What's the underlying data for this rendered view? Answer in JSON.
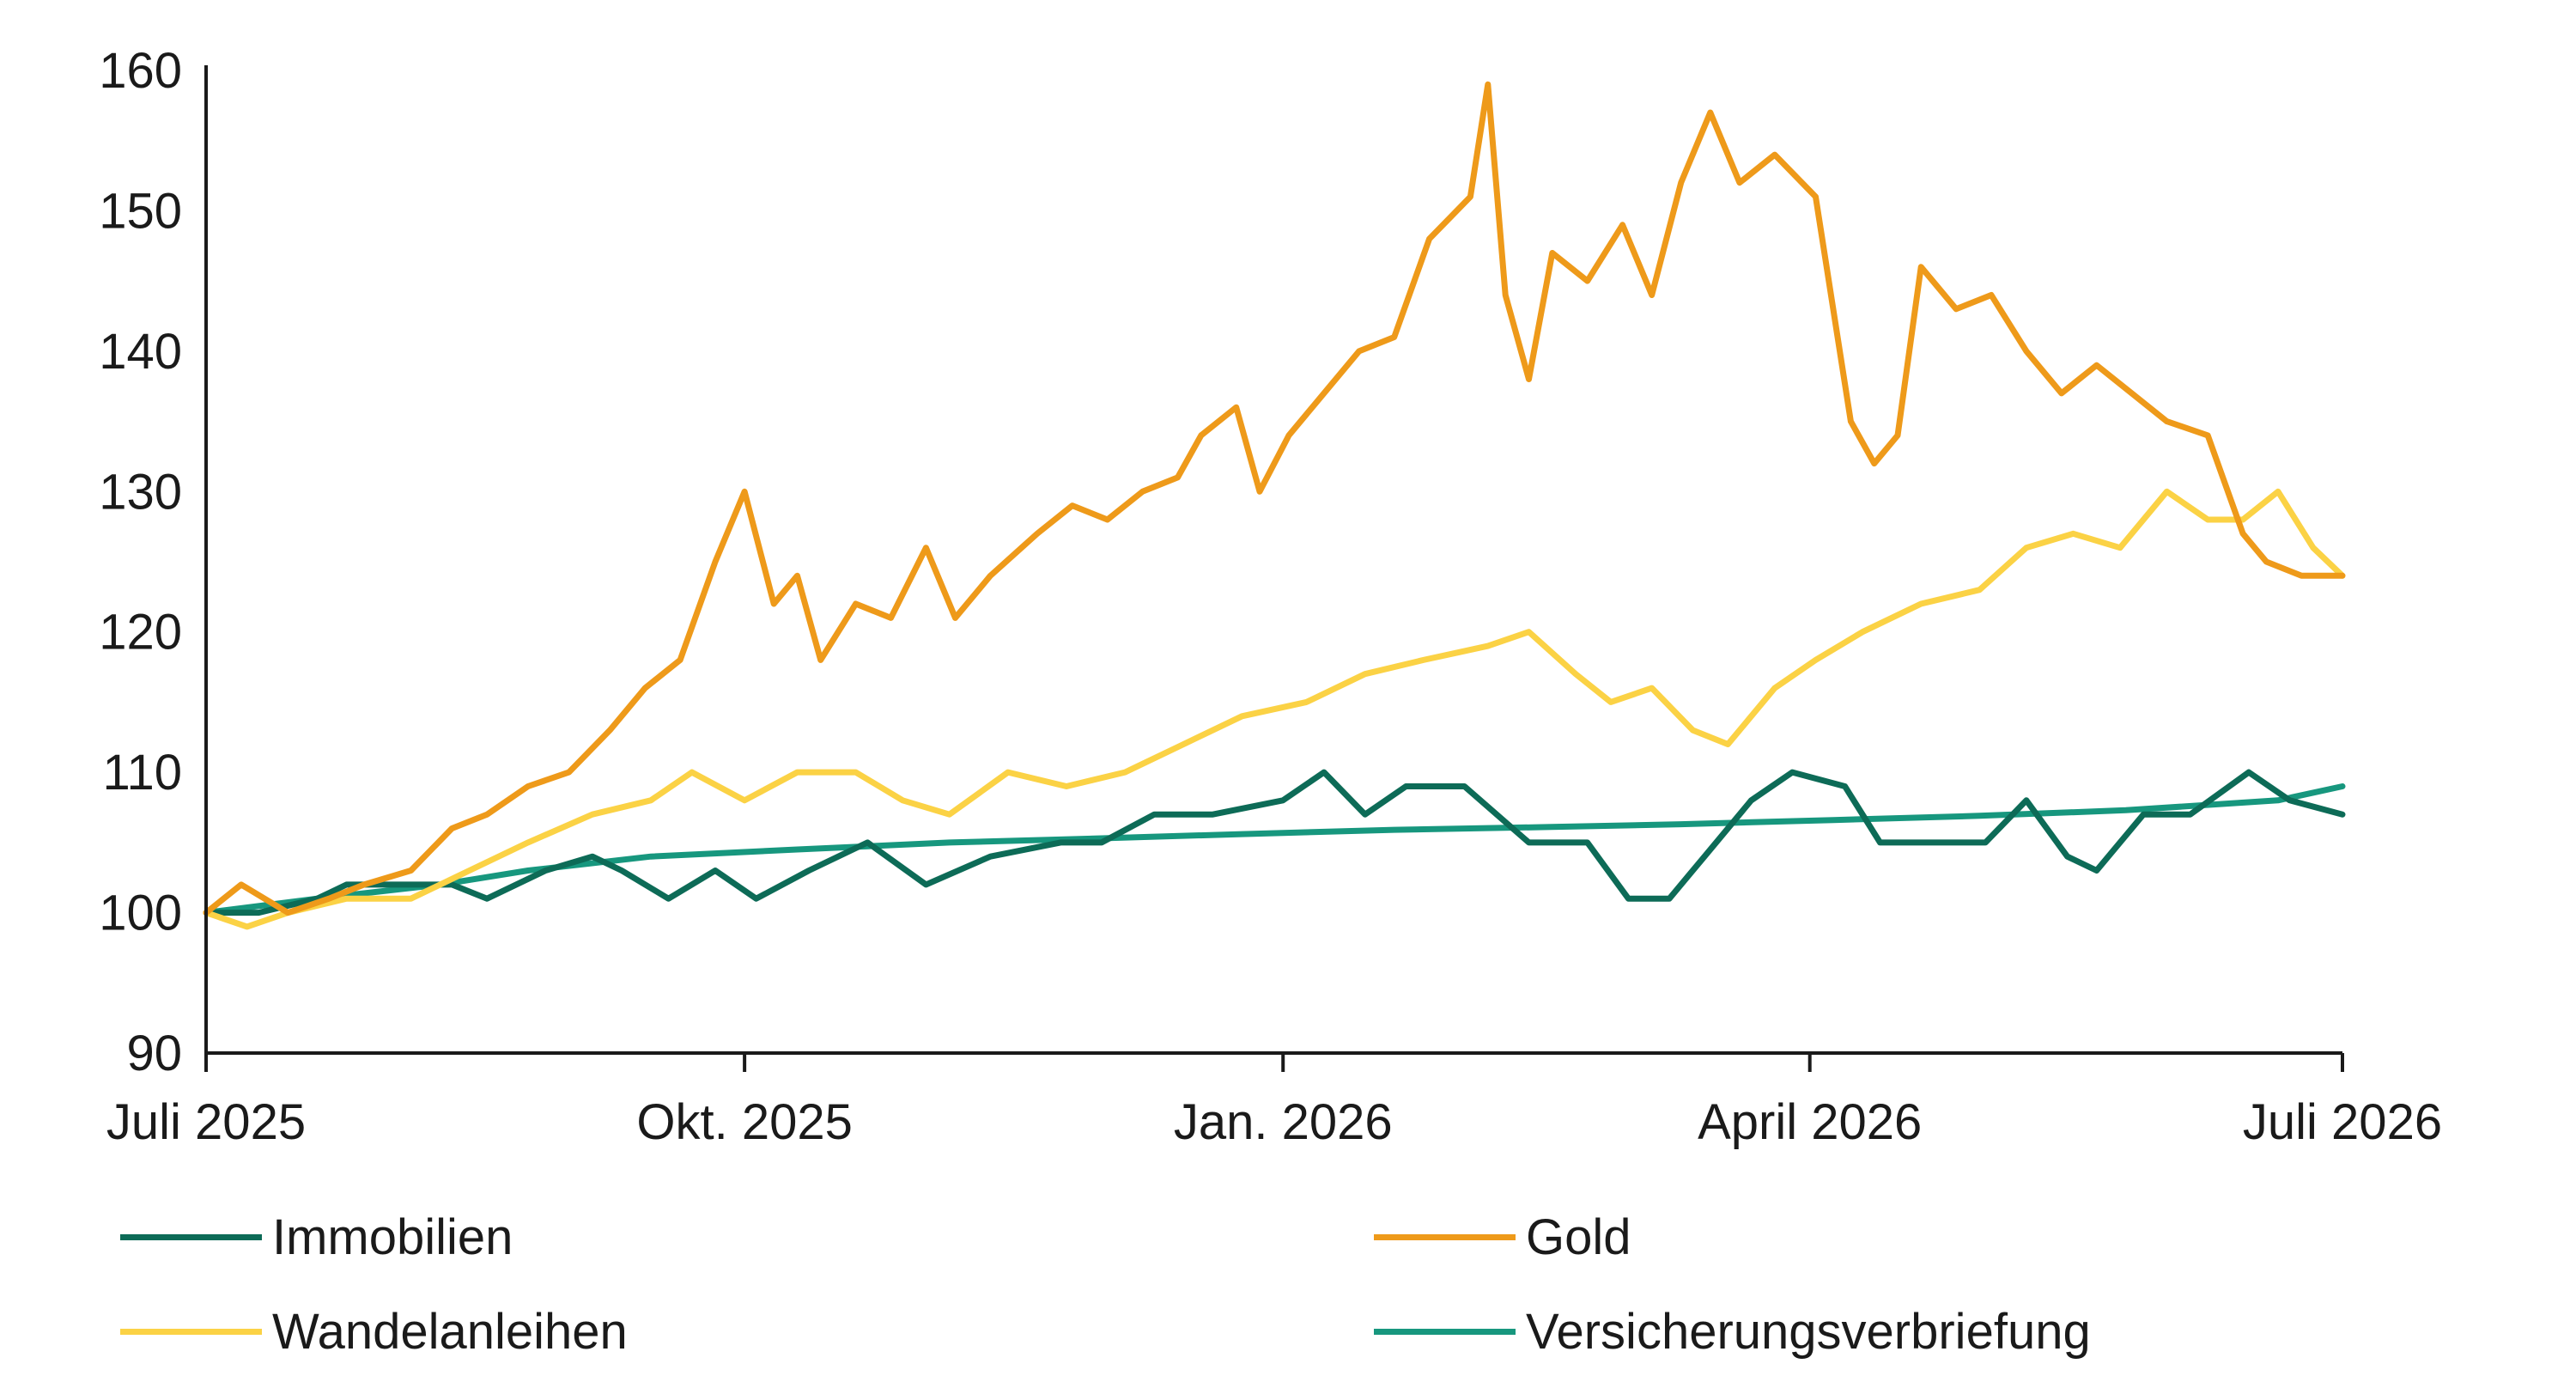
{
  "chart_data": {
    "type": "line",
    "title": "",
    "xlabel": "",
    "ylabel": "",
    "ylim": [
      90,
      160
    ],
    "yticks": [
      "90",
      "100",
      "110",
      "120",
      "130",
      "140",
      "150",
      "160"
    ],
    "xlim": [
      "2025-07-01",
      "2026-07-01"
    ],
    "xticks": [
      {
        "date": "2025-07-01",
        "label": "Juli 2025"
      },
      {
        "date": "2025-10-01",
        "label": "Okt. 2025"
      },
      {
        "date": "2026-01-01",
        "label": "Jan. 2026"
      },
      {
        "date": "2026-04-01",
        "label": "April 2026"
      },
      {
        "date": "2026-07-01",
        "label": "Juli 2026"
      }
    ],
    "grid": false,
    "legend_position": "bottom",
    "series": [
      {
        "name": "Immobilien",
        "color": "#0d6b57",
        "points": [
          [
            "2025-07-01",
            100
          ],
          [
            "2025-07-10",
            100
          ],
          [
            "2025-07-20",
            101
          ],
          [
            "2025-07-25",
            102
          ],
          [
            "2025-08-05",
            102
          ],
          [
            "2025-08-12",
            102
          ],
          [
            "2025-08-18",
            101
          ],
          [
            "2025-08-28",
            103
          ],
          [
            "2025-09-05",
            104
          ],
          [
            "2025-09-10",
            103
          ],
          [
            "2025-09-18",
            101
          ],
          [
            "2025-09-26",
            103
          ],
          [
            "2025-10-03",
            101
          ],
          [
            "2025-10-12",
            103
          ],
          [
            "2025-10-22",
            105
          ],
          [
            "2025-11-01",
            102
          ],
          [
            "2025-11-12",
            104
          ],
          [
            "2025-11-24",
            105
          ],
          [
            "2025-12-01",
            105
          ],
          [
            "2025-12-10",
            107
          ],
          [
            "2025-12-20",
            107
          ],
          [
            "2026-01-01",
            108
          ],
          [
            "2026-01-08",
            110
          ],
          [
            "2026-01-15",
            107
          ],
          [
            "2026-01-22",
            109
          ],
          [
            "2026-02-01",
            109
          ],
          [
            "2026-02-12",
            105
          ],
          [
            "2026-02-22",
            105
          ],
          [
            "2026-03-01",
            101
          ],
          [
            "2026-03-08",
            101
          ],
          [
            "2026-03-14",
            104
          ],
          [
            "2026-03-22",
            108
          ],
          [
            "2026-03-29",
            110
          ],
          [
            "2026-04-07",
            109
          ],
          [
            "2026-04-13",
            105
          ],
          [
            "2026-04-22",
            105
          ],
          [
            "2026-05-01",
            105
          ],
          [
            "2026-05-08",
            108
          ],
          [
            "2026-05-15",
            104
          ],
          [
            "2026-05-20",
            103
          ],
          [
            "2026-05-28",
            107
          ],
          [
            "2026-06-05",
            107
          ],
          [
            "2026-06-15",
            110
          ],
          [
            "2026-06-22",
            108
          ],
          [
            "2026-07-01",
            107
          ]
        ]
      },
      {
        "name": "Gold",
        "color": "#ee9a1a",
        "points": [
          [
            "2025-07-01",
            100
          ],
          [
            "2025-07-07",
            102
          ],
          [
            "2025-07-15",
            100
          ],
          [
            "2025-07-22",
            101
          ],
          [
            "2025-07-28",
            102
          ],
          [
            "2025-08-05",
            103
          ],
          [
            "2025-08-12",
            106
          ],
          [
            "2025-08-18",
            107
          ],
          [
            "2025-08-25",
            109
          ],
          [
            "2025-09-01",
            110
          ],
          [
            "2025-09-08",
            113
          ],
          [
            "2025-09-14",
            116
          ],
          [
            "2025-09-20",
            118
          ],
          [
            "2025-09-26",
            125
          ],
          [
            "2025-10-01",
            130
          ],
          [
            "2025-10-06",
            122
          ],
          [
            "2025-10-10",
            124
          ],
          [
            "2025-10-14",
            118
          ],
          [
            "2025-10-20",
            122
          ],
          [
            "2025-10-26",
            121
          ],
          [
            "2025-11-01",
            126
          ],
          [
            "2025-11-06",
            121
          ],
          [
            "2025-11-12",
            124
          ],
          [
            "2025-11-20",
            127
          ],
          [
            "2025-11-26",
            129
          ],
          [
            "2025-12-02",
            128
          ],
          [
            "2025-12-08",
            130
          ],
          [
            "2025-12-14",
            131
          ],
          [
            "2025-12-18",
            134
          ],
          [
            "2025-12-24",
            136
          ],
          [
            "2025-12-28",
            130
          ],
          [
            "2026-01-02",
            134
          ],
          [
            "2026-01-08",
            137
          ],
          [
            "2026-01-14",
            140
          ],
          [
            "2026-01-20",
            141
          ],
          [
            "2026-01-26",
            148
          ],
          [
            "2026-02-02",
            151
          ],
          [
            "2026-02-05",
            159
          ],
          [
            "2026-02-08",
            144
          ],
          [
            "2026-02-12",
            138
          ],
          [
            "2026-02-16",
            147
          ],
          [
            "2026-02-22",
            145
          ],
          [
            "2026-02-28",
            149
          ],
          [
            "2026-03-05",
            144
          ],
          [
            "2026-03-10",
            152
          ],
          [
            "2026-03-15",
            157
          ],
          [
            "2026-03-20",
            152
          ],
          [
            "2026-03-26",
            154
          ],
          [
            "2026-04-02",
            151
          ],
          [
            "2026-04-08",
            135
          ],
          [
            "2026-04-12",
            132
          ],
          [
            "2026-04-16",
            134
          ],
          [
            "2026-04-20",
            146
          ],
          [
            "2026-04-26",
            143
          ],
          [
            "2026-05-02",
            144
          ],
          [
            "2026-05-08",
            140
          ],
          [
            "2026-05-14",
            137
          ],
          [
            "2026-05-20",
            139
          ],
          [
            "2026-05-26",
            137
          ],
          [
            "2026-06-01",
            135
          ],
          [
            "2026-06-08",
            134
          ],
          [
            "2026-06-14",
            127
          ],
          [
            "2026-06-18",
            125
          ],
          [
            "2026-06-24",
            124
          ],
          [
            "2026-07-01",
            124
          ]
        ]
      },
      {
        "name": "Wandelanleihen",
        "color": "#fbd245",
        "points": [
          [
            "2025-07-01",
            100
          ],
          [
            "2025-07-08",
            99
          ],
          [
            "2025-07-15",
            100
          ],
          [
            "2025-07-25",
            101
          ],
          [
            "2025-08-05",
            101
          ],
          [
            "2025-08-15",
            103
          ],
          [
            "2025-08-25",
            105
          ],
          [
            "2025-09-05",
            107
          ],
          [
            "2025-09-15",
            108
          ],
          [
            "2025-09-22",
            110
          ],
          [
            "2025-10-01",
            108
          ],
          [
            "2025-10-10",
            110
          ],
          [
            "2025-10-20",
            110
          ],
          [
            "2025-10-28",
            108
          ],
          [
            "2025-11-05",
            107
          ],
          [
            "2025-11-15",
            110
          ],
          [
            "2025-11-25",
            109
          ],
          [
            "2025-12-05",
            110
          ],
          [
            "2025-12-15",
            112
          ],
          [
            "2025-12-25",
            114
          ],
          [
            "2026-01-05",
            115
          ],
          [
            "2026-01-15",
            117
          ],
          [
            "2026-01-25",
            118
          ],
          [
            "2026-02-05",
            119
          ],
          [
            "2026-02-12",
            120
          ],
          [
            "2026-02-20",
            117
          ],
          [
            "2026-02-26",
            115
          ],
          [
            "2026-03-05",
            116
          ],
          [
            "2026-03-12",
            113
          ],
          [
            "2026-03-18",
            112
          ],
          [
            "2026-03-26",
            116
          ],
          [
            "2026-04-02",
            118
          ],
          [
            "2026-04-10",
            120
          ],
          [
            "2026-04-20",
            122
          ],
          [
            "2026-04-30",
            123
          ],
          [
            "2026-05-08",
            126
          ],
          [
            "2026-05-16",
            127
          ],
          [
            "2026-05-24",
            126
          ],
          [
            "2026-06-01",
            130
          ],
          [
            "2026-06-08",
            128
          ],
          [
            "2026-06-14",
            128
          ],
          [
            "2026-06-20",
            130
          ],
          [
            "2026-06-26",
            126
          ],
          [
            "2026-07-01",
            124
          ]
        ]
      },
      {
        "name": "Versicherungsverbriefung",
        "color": "#17977e",
        "points": [
          [
            "2025-07-01",
            100
          ],
          [
            "2025-07-20",
            101
          ],
          [
            "2025-08-10",
            102
          ],
          [
            "2025-08-25",
            103
          ],
          [
            "2025-09-15",
            104
          ],
          [
            "2025-10-10",
            104.5
          ],
          [
            "2025-11-05",
            105
          ],
          [
            "2025-12-01",
            105.3
          ],
          [
            "2025-12-25",
            105.6
          ],
          [
            "2026-01-20",
            105.9
          ],
          [
            "2026-02-15",
            106.1
          ],
          [
            "2026-03-10",
            106.3
          ],
          [
            "2026-04-05",
            106.6
          ],
          [
            "2026-04-30",
            106.9
          ],
          [
            "2026-05-25",
            107.3
          ],
          [
            "2026-06-20",
            108
          ],
          [
            "2026-07-01",
            109
          ]
        ]
      }
    ]
  }
}
